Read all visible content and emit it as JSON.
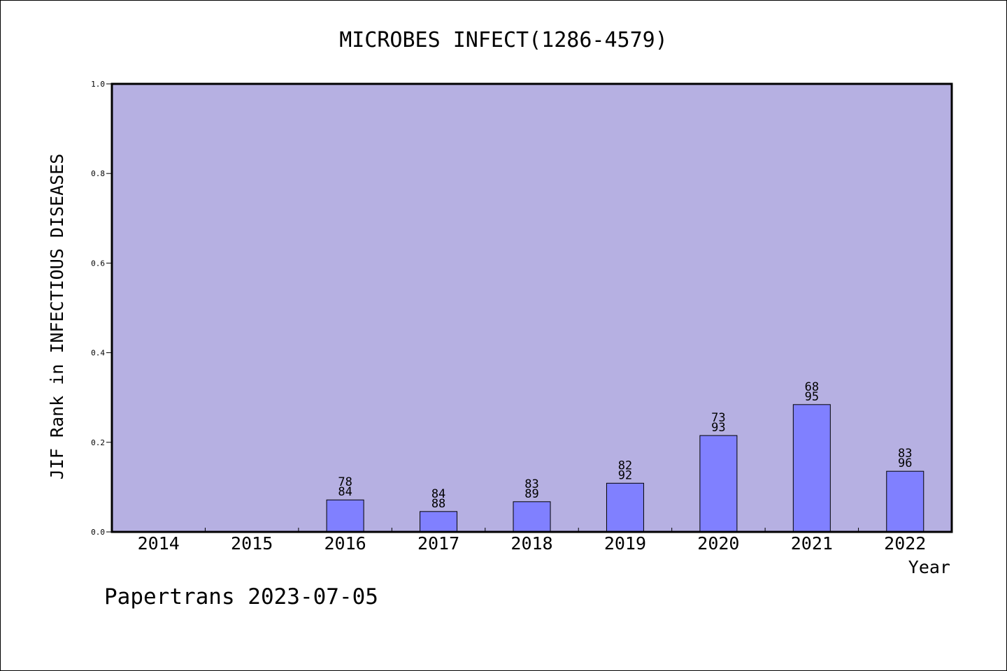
{
  "chart_data": {
    "type": "bar",
    "title": "MICROBES INFECT(1286-4579)",
    "xlabel": "Year",
    "ylabel": "JIF Rank in INFECTIOUS DISEASES",
    "ylim": [
      0,
      1.0
    ],
    "yticks": [
      "0.0",
      "0.2",
      "0.4",
      "0.6",
      "0.8",
      "1.0"
    ],
    "categories": [
      "2014",
      "2015",
      "2016",
      "2017",
      "2018",
      "2019",
      "2020",
      "2021",
      "2022"
    ],
    "values": [
      null,
      null,
      0.0714,
      0.0455,
      0.0674,
      0.1087,
      0.2151,
      0.2842,
      0.1354
    ],
    "labels": [
      null,
      null,
      [
        "78",
        "84"
      ],
      [
        "84",
        "88"
      ],
      [
        "83",
        "89"
      ],
      [
        "82",
        "92"
      ],
      [
        "73",
        "93"
      ],
      [
        "68",
        "95"
      ],
      [
        "83",
        "96"
      ]
    ],
    "grid": false,
    "colors": {
      "plot_background": "#b6b0e2",
      "bar_fill": "#8080ff",
      "bar_stroke": "#000000"
    }
  },
  "footer": "Papertrans 2023-07-05"
}
